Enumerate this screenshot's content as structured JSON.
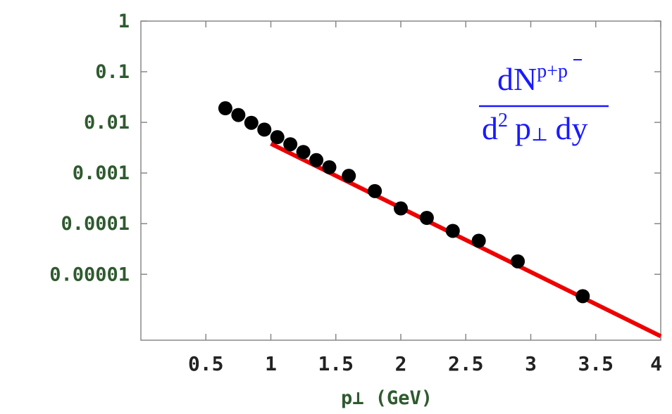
{
  "chart_data": {
    "type": "scatter",
    "title": "",
    "annotation": {
      "numerator_base": "dN",
      "numerator_sup": "p+p",
      "denominator_base": "d",
      "denominator_power": "2",
      "denominator_p": "p",
      "denominator_perp": "⊥",
      "denominator_tail": "dy"
    },
    "xlabel": "p⊥ (GeV)",
    "ylabel": "",
    "xlim": [
      0,
      4
    ],
    "ylim": [
      5e-07,
      1
    ],
    "yscale": "log",
    "grid": false,
    "x_ticks": [
      {
        "value": 0.5,
        "label": "0.5"
      },
      {
        "value": 1,
        "label": "1"
      },
      {
        "value": 1.5,
        "label": "1.5"
      },
      {
        "value": 2,
        "label": "2"
      },
      {
        "value": 2.5,
        "label": "2.5"
      },
      {
        "value": 3,
        "label": "3"
      },
      {
        "value": 3.5,
        "label": "3.5"
      },
      {
        "value": 4,
        "label": "4"
      }
    ],
    "y_ticks": [
      {
        "value": 1,
        "label": "1"
      },
      {
        "value": 0.1,
        "label": "0.1"
      },
      {
        "value": 0.01,
        "label": "0.01"
      },
      {
        "value": 0.001,
        "label": "0.001"
      },
      {
        "value": 0.0001,
        "label": "0.0001"
      },
      {
        "value": 1e-05,
        "label": "0.00001"
      }
    ],
    "series": [
      {
        "type": "scatter",
        "color": "#000000",
        "points": [
          {
            "x": 0.65,
            "y": 0.019
          },
          {
            "x": 0.75,
            "y": 0.014
          },
          {
            "x": 0.85,
            "y": 0.0098
          },
          {
            "x": 0.95,
            "y": 0.0072
          },
          {
            "x": 1.05,
            "y": 0.0051
          },
          {
            "x": 1.15,
            "y": 0.0037
          },
          {
            "x": 1.25,
            "y": 0.0026
          },
          {
            "x": 1.35,
            "y": 0.0018
          },
          {
            "x": 1.45,
            "y": 0.0013
          },
          {
            "x": 1.6,
            "y": 0.00088
          },
          {
            "x": 1.8,
            "y": 0.00044
          },
          {
            "x": 2.0,
            "y": 0.0002
          },
          {
            "x": 2.2,
            "y": 0.00013
          },
          {
            "x": 2.4,
            "y": 7.2e-05
          },
          {
            "x": 2.6,
            "y": 4.6e-05
          },
          {
            "x": 2.9,
            "y": 1.8e-05
          },
          {
            "x": 3.4,
            "y": 3.7e-06
          }
        ]
      },
      {
        "type": "line",
        "color": "#ee0000",
        "points": [
          {
            "x": 1.0,
            "y": 0.0038
          },
          {
            "x": 4.0,
            "y": 6e-07
          }
        ]
      }
    ]
  }
}
